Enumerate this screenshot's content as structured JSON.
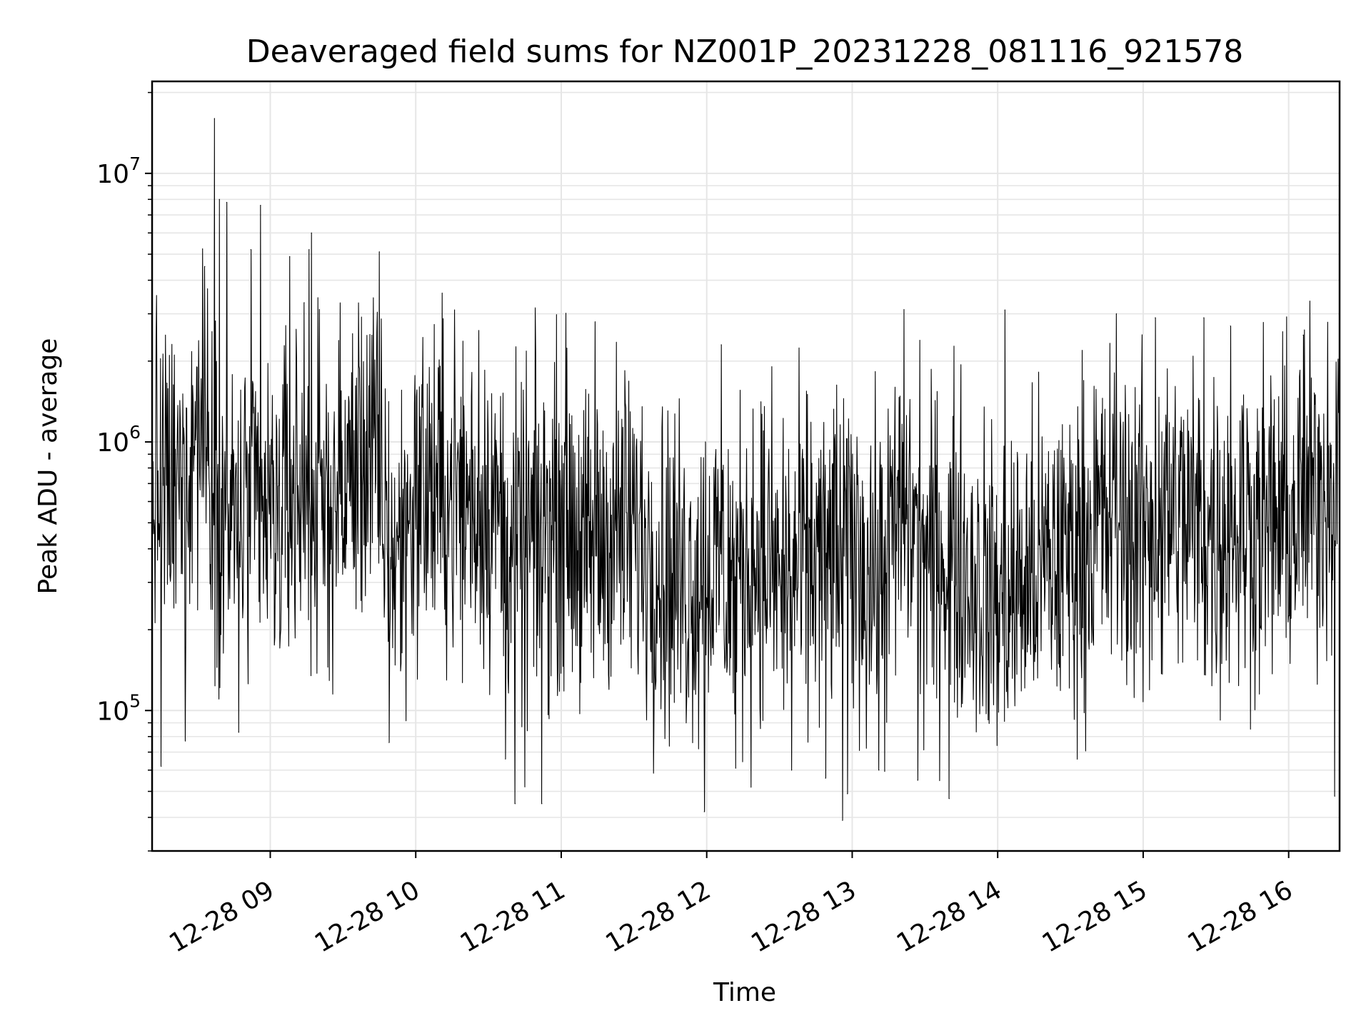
{
  "chart_data": {
    "type": "line",
    "title": "Deaveraged field sums for NZ001P_20231228_081116_921578",
    "xlabel": "Time",
    "ylabel": "Peak ADU - average",
    "yscale": "log",
    "grid": true,
    "line_color": "#000000",
    "grid_color": "#e6e6e6",
    "xlim": [
      "2023-12-28T08:11:16",
      "2023-12-28T16:21:00"
    ],
    "ylim": [
      30000,
      22000000
    ],
    "x_ticks": [
      {
        "value": "2023-12-28T09:00:00",
        "label": "12-28 09"
      },
      {
        "value": "2023-12-28T10:00:00",
        "label": "12-28 10"
      },
      {
        "value": "2023-12-28T11:00:00",
        "label": "12-28 11"
      },
      {
        "value": "2023-12-28T12:00:00",
        "label": "12-28 12"
      },
      {
        "value": "2023-12-28T13:00:00",
        "label": "12-28 13"
      },
      {
        "value": "2023-12-28T14:00:00",
        "label": "12-28 14"
      },
      {
        "value": "2023-12-28T15:00:00",
        "label": "12-28 15"
      },
      {
        "value": "2023-12-28T16:00:00",
        "label": "12-28 16"
      }
    ],
    "y_ticks": [
      {
        "value": 100000,
        "base": "10",
        "exp": "5"
      },
      {
        "value": 1000000,
        "base": "10",
        "exp": "6"
      },
      {
        "value": 10000000,
        "base": "10",
        "exp": "7"
      }
    ],
    "series": [
      {
        "time_step_minutes": 10,
        "x_start": "2023-12-28T08:11:16",
        "values": [
          700000,
          600000,
          1300000,
          450000,
          550000,
          500000,
          650000,
          550000,
          700000,
          1000000,
          350000,
          700000,
          650000,
          600000,
          600000,
          400000,
          450000,
          600000,
          350000,
          500000,
          450000,
          350000,
          300000,
          350000,
          300000,
          400000,
          300000,
          350000,
          400000,
          400000,
          300000,
          600000,
          350000,
          400000,
          300000,
          250000,
          300000,
          350000,
          400000,
          500000,
          500000,
          450000,
          550000,
          500000,
          450000,
          500000,
          500000,
          500000,
          650000,
          800000
        ]
      }
    ],
    "spikes_high": [
      {
        "x": "2023-12-28T08:33:00",
        "y": 4500000
      },
      {
        "x": "2023-12-28T08:42:00",
        "y": 4700000
      },
      {
        "x": "2023-12-28T08:37:00",
        "y": 16000000
      },
      {
        "x": "2023-12-28T08:39:00",
        "y": 8000000
      },
      {
        "x": "2023-12-28T08:42:00",
        "y": 7800000
      },
      {
        "x": "2023-12-28T08:52:00",
        "y": 5200000
      },
      {
        "x": "2023-12-28T08:56:00",
        "y": 7600000
      },
      {
        "x": "2023-12-28T09:08:00",
        "y": 4900000
      },
      {
        "x": "2023-12-28T09:14:00",
        "y": 3300000
      },
      {
        "x": "2023-12-28T09:16:00",
        "y": 5200000
      },
      {
        "x": "2023-12-28T09:17:00",
        "y": 6000000
      },
      {
        "x": "2023-12-28T09:45:00",
        "y": 5100000
      },
      {
        "x": "2023-12-28T10:16:00",
        "y": 3100000
      },
      {
        "x": "2023-12-28T10:26:00",
        "y": 2600000
      },
      {
        "x": "2023-12-28T11:14:00",
        "y": 2800000
      },
      {
        "x": "2023-12-28T12:06:00",
        "y": 2300000
      },
      {
        "x": "2023-12-28T14:03:00",
        "y": 3100000
      },
      {
        "x": "2023-12-28T14:49:00",
        "y": 3000000
      },
      {
        "x": "2023-12-28T15:05:00",
        "y": 2900000
      },
      {
        "x": "2023-12-28T15:25:00",
        "y": 2900000
      },
      {
        "x": "2023-12-28T15:36:00",
        "y": 2700000
      },
      {
        "x": "2023-12-28T16:06:00",
        "y": 2500000
      }
    ],
    "spikes_low": [
      {
        "x": "2023-12-28T08:15:00",
        "y": 62000
      },
      {
        "x": "2023-12-28T08:25:00",
        "y": 77000
      },
      {
        "x": "2023-12-28T08:47:00",
        "y": 83000
      },
      {
        "x": "2023-12-28T09:49:00",
        "y": 76000
      },
      {
        "x": "2023-12-28T10:37:00",
        "y": 66000
      },
      {
        "x": "2023-12-28T10:41:00",
        "y": 45000
      },
      {
        "x": "2023-12-28T10:45:00",
        "y": 52000
      },
      {
        "x": "2023-12-28T10:52:00",
        "y": 45000
      },
      {
        "x": "2023-12-28T11:59:00",
        "y": 42000
      },
      {
        "x": "2023-12-28T12:12:00",
        "y": 61000
      },
      {
        "x": "2023-12-28T12:35:00",
        "y": 60000
      },
      {
        "x": "2023-12-28T12:49:00",
        "y": 56000
      },
      {
        "x": "2023-12-28T12:56:00",
        "y": 39000
      },
      {
        "x": "2023-12-28T12:58:00",
        "y": 49000
      },
      {
        "x": "2023-12-28T13:11:00",
        "y": 60000
      },
      {
        "x": "2023-12-28T13:27:00",
        "y": 55000
      },
      {
        "x": "2023-12-28T13:40:00",
        "y": 47000
      },
      {
        "x": "2023-12-28T16:19:00",
        "y": 48000
      }
    ]
  }
}
